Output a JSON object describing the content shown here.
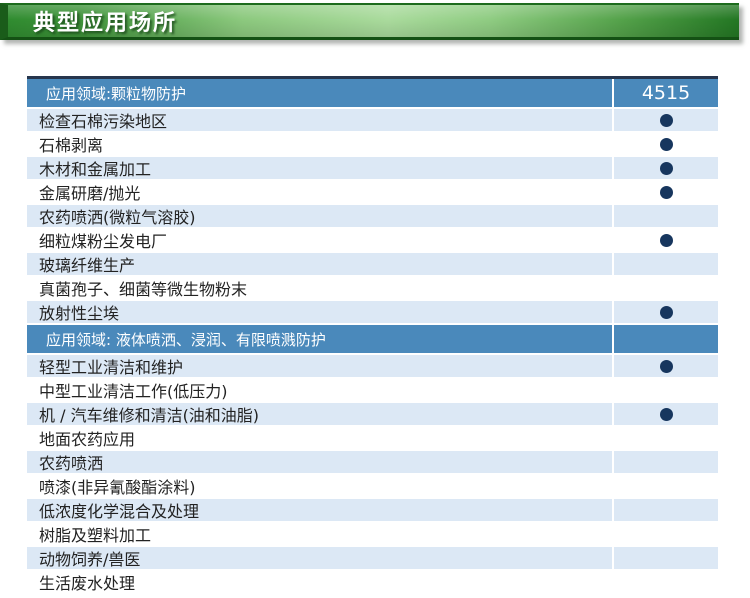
{
  "banner": {
    "title": "典型应用场所"
  },
  "table": {
    "product_model": "4515",
    "sections": [
      {
        "header": "应用领域:颗粒物防护",
        "rows": [
          {
            "label": "检查石棉污染地区",
            "dot": true
          },
          {
            "label": "石棉剥离",
            "dot": true
          },
          {
            "label": "木材和金属加工",
            "dot": true
          },
          {
            "label": "金属研磨/抛光",
            "dot": true
          },
          {
            "label": "农药喷洒(微粒气溶胶)",
            "dot": false
          },
          {
            "label": "细粒煤粉尘发电厂",
            "dot": true
          },
          {
            "label": "玻璃纤维生产",
            "dot": false
          },
          {
            "label": "真菌孢子、细菌等微生物粉末",
            "dot": false
          },
          {
            "label": "放射性尘埃",
            "dot": true
          }
        ]
      },
      {
        "header": "应用领域: 液体喷洒、浸润、有限喷溅防护",
        "rows": [
          {
            "label": "轻型工业清洁和维护",
            "dot": true
          },
          {
            "label": "中型工业清洁工作(低压力)",
            "dot": false
          },
          {
            "label": "机 / 汽车维修和清洁(油和油脂)",
            "dot": true
          },
          {
            "label": "地面农药应用",
            "dot": false
          },
          {
            "label": "农药喷洒",
            "dot": false
          },
          {
            "label": "喷漆(非异氰酸酯涂料)",
            "dot": false
          },
          {
            "label": "低浓度化学混合及处理",
            "dot": false
          },
          {
            "label": "树脂及塑料加工",
            "dot": false
          },
          {
            "label": "动物饲养/兽医",
            "dot": false
          },
          {
            "label": "生活废水处理",
            "dot": false
          }
        ]
      }
    ]
  },
  "colors": {
    "banner_green_dark": "#1a5c1a",
    "banner_green_mid": "#318c31",
    "banner_green_light": "#aadb9d",
    "header_blue": "#4a89bb",
    "row_tint_blue": "#dce8f5",
    "dot_navy": "#17365e",
    "table_top_border": "#26354d"
  }
}
